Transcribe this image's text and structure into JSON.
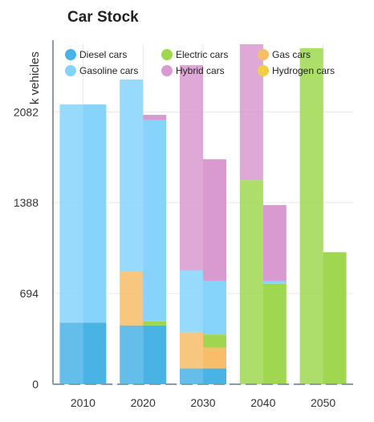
{
  "chart_data": {
    "type": "bar",
    "title": "Car Stock",
    "ylabel": "k vehicles",
    "xlabel": "",
    "categories": [
      "2010",
      "2020",
      "2030",
      "2040",
      "2050"
    ],
    "y_ticks": [
      "0",
      "694",
      "1388",
      "2082"
    ],
    "ylim": [
      0,
      2600
    ],
    "legend_position": "top",
    "colors": {
      "Diesel cars": "#4ab3e6",
      "Gasoline cars": "#86d3fb",
      "Electric cars": "#9fd84f",
      "Hybrid cars": "#d99ad0",
      "Gas cars": "#f7bd69",
      "Hydrogen cars": "#f0d040"
    },
    "legend": [
      "Diesel cars",
      "Electric cars",
      "Gas cars",
      "Gasoline cars",
      "Hybrid cars",
      "Hydrogen cars"
    ],
    "series_groups": [
      {
        "series": [
          {
            "name": "Diesel cars",
            "values": [
              470,
              450,
              120,
              0,
              0
            ]
          },
          {
            "name": "Gas cars",
            "values": [
              0,
              410,
              280,
              0,
              0
            ]
          },
          {
            "name": "Hydrogen cars",
            "values": [
              0,
              0,
              0,
              0,
              0
            ]
          },
          {
            "name": "Electric cars",
            "values": [
              0,
              0,
              0,
              1560,
              2570
            ]
          },
          {
            "name": "Gasoline cars",
            "values": [
              1670,
              1470,
              470,
              0,
              0
            ]
          },
          {
            "name": "Hybrid cars",
            "values": [
              0,
              0,
              1570,
              1040,
              0
            ]
          }
        ]
      },
      {
        "series": [
          {
            "name": "Diesel cars",
            "values": [
              470,
              450,
              120,
              0,
              0
            ]
          },
          {
            "name": "Gas cars",
            "values": [
              0,
              0,
              160,
              0,
              0
            ]
          },
          {
            "name": "Hydrogen cars",
            "values": [
              0,
              0,
              0,
              0,
              0
            ]
          },
          {
            "name": "Electric cars",
            "values": [
              0,
              30,
              100,
              770,
              1010
            ]
          },
          {
            "name": "Gasoline cars",
            "values": [
              1670,
              1540,
              410,
              20,
              0
            ]
          },
          {
            "name": "Hybrid cars",
            "values": [
              0,
              40,
              930,
              580,
              0
            ]
          }
        ]
      }
    ]
  }
}
